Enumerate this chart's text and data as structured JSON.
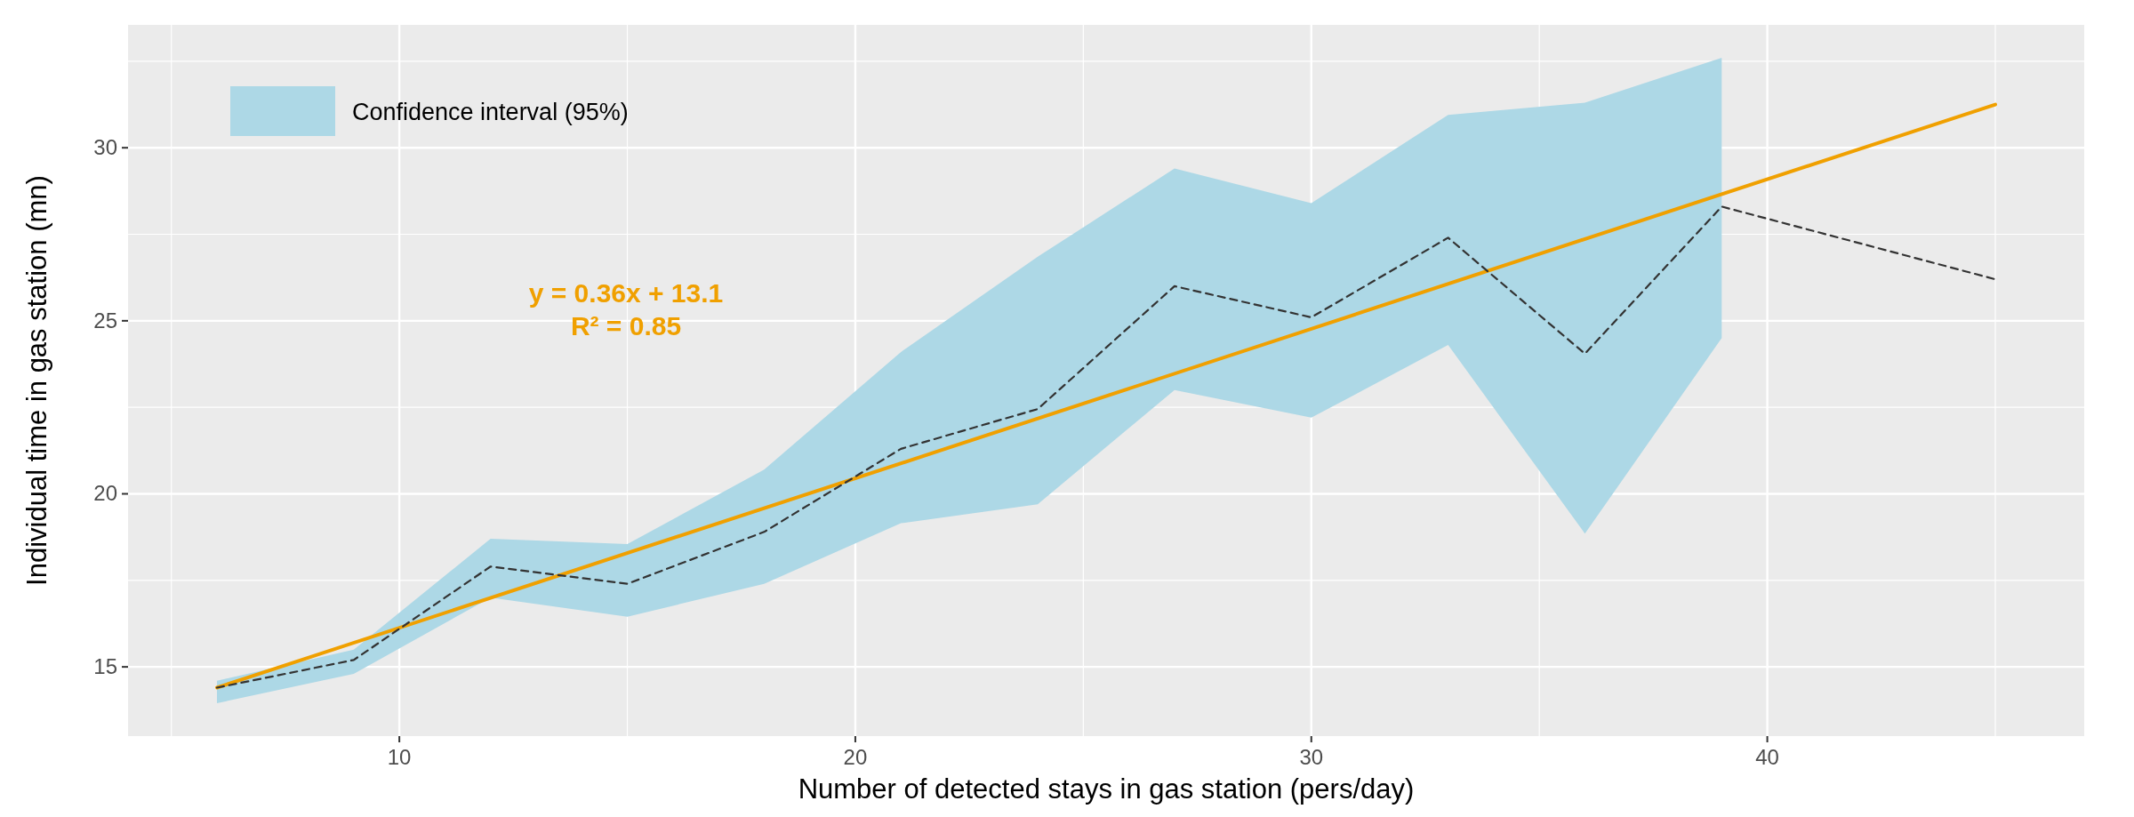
{
  "chart_data": {
    "type": "line",
    "xlabel": "Number of detected stays in gas station (pers/day)",
    "ylabel": "Individual time in gas station (mn)",
    "x": [
      6,
      9,
      12,
      15,
      18,
      21,
      24,
      27,
      30,
      33,
      36,
      39,
      45
    ],
    "series": [
      {
        "type": "area",
        "name": "Confidence interval (95%)",
        "color": "#add8e6",
        "values": [
          null,
          null,
          null,
          null,
          null,
          null,
          null,
          null,
          null,
          null,
          null,
          null,
          null
        ],
        "lower": [
          13.95,
          14.8,
          17.0,
          16.45,
          17.4,
          19.15,
          19.7,
          23.0,
          22.2,
          24.3,
          18.85,
          24.5,
          null
        ],
        "upper": [
          14.6,
          15.5,
          18.7,
          18.55,
          20.7,
          24.1,
          26.85,
          29.4,
          28.4,
          30.95,
          31.3,
          32.6,
          null
        ]
      },
      {
        "type": "line",
        "color": "#333333",
        "line_style": "dashed",
        "values": [
          14.4,
          15.2,
          17.9,
          17.4,
          18.9,
          21.3,
          22.45,
          26.0,
          25.1,
          27.4,
          24.05,
          28.3,
          26.2
        ]
      },
      {
        "type": "line",
        "color": "#f0a000",
        "line_style": "solid",
        "x": [
          6,
          45
        ],
        "values": [
          14.4,
          31.25
        ]
      }
    ],
    "xlim": [
      4.05,
      46.95
    ],
    "xticks": [
      10,
      20,
      30,
      40
    ],
    "ylim": [
      13.0,
      33.55
    ],
    "yticks": [
      15,
      20,
      25,
      30
    ],
    "grid": true,
    "legend": "top left",
    "annotations": [
      "y = 0.36x + 13.1",
      "R² = 0.85"
    ]
  }
}
